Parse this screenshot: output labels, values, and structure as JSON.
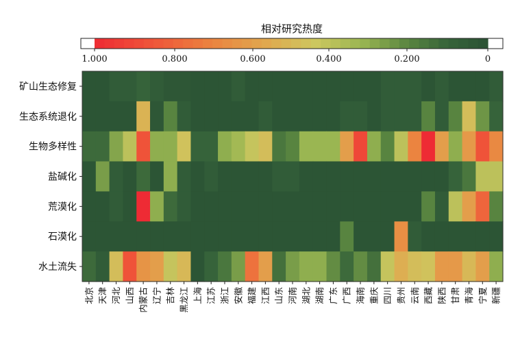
{
  "chart_data": {
    "type": "heatmap",
    "title": "相对研究热度",
    "colorbar": {
      "tick_labels": [
        "1.000",
        "0.800",
        "0.600",
        "0.400",
        "0.200",
        "0"
      ],
      "tick_values": [
        1.0,
        0.8,
        0.6,
        0.4,
        0.2,
        0.0
      ],
      "range": [
        1.0,
        0.0
      ]
    },
    "rows": [
      "矿山生态修复",
      "生态系统退化",
      "生物多样性",
      "盐碱化",
      "荒漠化",
      "石漠化",
      "水土流失"
    ],
    "columns": [
      "北京",
      "天津",
      "河北",
      "山西",
      "内蒙古",
      "辽宁",
      "吉林",
      "黑龙江",
      "上海",
      "江苏",
      "浙江",
      "安徽",
      "福建",
      "江西",
      "山东",
      "河南",
      "湖北",
      "湖南",
      "广东",
      "广西",
      "海南",
      "重庆",
      "四川",
      "贵州",
      "云南",
      "西藏",
      "陕西",
      "甘肃",
      "青海",
      "宁夏",
      "新疆"
    ],
    "values": [
      [
        0.02,
        0.02,
        0.06,
        0.06,
        0.1,
        0.06,
        0.03,
        0.03,
        0.02,
        0.02,
        0.02,
        0.06,
        0.02,
        0.02,
        0.02,
        0.02,
        0.02,
        0.02,
        0.02,
        0.02,
        0.02,
        0.02,
        0.06,
        0.06,
        0.06,
        0.02,
        0.06,
        0.02,
        0.02,
        0.02,
        0.06
      ],
      [
        0.02,
        0.02,
        0.02,
        0.02,
        0.52,
        0.03,
        0.2,
        0.06,
        0.02,
        0.02,
        0.02,
        0.02,
        0.02,
        0.06,
        0.02,
        0.02,
        0.02,
        0.02,
        0.02,
        0.06,
        0.06,
        0.02,
        0.06,
        0.06,
        0.06,
        0.2,
        0.06,
        0.2,
        0.48,
        0.24,
        0.1
      ],
      [
        0.12,
        0.12,
        0.28,
        0.4,
        0.86,
        0.3,
        0.3,
        0.46,
        0.1,
        0.1,
        0.3,
        0.34,
        0.42,
        0.48,
        0.16,
        0.2,
        0.32,
        0.32,
        0.32,
        0.6,
        0.9,
        0.3,
        0.2,
        0.4,
        0.7,
        1.0,
        0.6,
        0.3,
        0.62,
        0.86,
        0.68
      ],
      [
        0.02,
        0.26,
        0.06,
        0.02,
        0.12,
        0.02,
        0.3,
        0.06,
        0.02,
        0.06,
        0.02,
        0.02,
        0.02,
        0.02,
        0.06,
        0.06,
        0.02,
        0.02,
        0.02,
        0.02,
        0.02,
        0.02,
        0.02,
        0.02,
        0.02,
        0.02,
        0.02,
        0.1,
        0.16,
        0.4,
        0.4
      ],
      [
        0.02,
        0.02,
        0.06,
        0.02,
        1.0,
        0.3,
        0.12,
        0.06,
        0.02,
        0.02,
        0.02,
        0.02,
        0.02,
        0.02,
        0.02,
        0.02,
        0.02,
        0.02,
        0.02,
        0.02,
        0.02,
        0.02,
        0.02,
        0.02,
        0.02,
        0.2,
        0.06,
        0.4,
        0.6,
        0.8,
        0.2
      ],
      [
        0.02,
        0.02,
        0.02,
        0.02,
        0.02,
        0.02,
        0.02,
        0.02,
        0.02,
        0.02,
        0.02,
        0.02,
        0.02,
        0.02,
        0.02,
        0.02,
        0.02,
        0.02,
        0.02,
        0.2,
        0.02,
        0.02,
        0.02,
        0.66,
        0.06,
        0.02,
        0.02,
        0.02,
        0.02,
        0.02,
        0.02
      ],
      [
        0.12,
        0.06,
        0.48,
        0.86,
        0.64,
        0.6,
        0.42,
        0.5,
        0.02,
        0.1,
        0.16,
        0.26,
        0.76,
        0.6,
        0.14,
        0.26,
        0.3,
        0.3,
        0.22,
        0.12,
        0.22,
        0.14,
        0.42,
        0.54,
        0.48,
        0.46,
        0.62,
        0.62,
        0.5,
        0.6,
        0.3
      ]
    ]
  }
}
